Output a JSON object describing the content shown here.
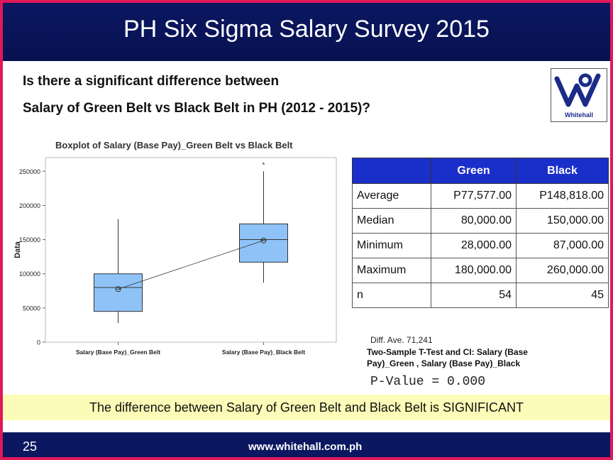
{
  "header": {
    "title": "PH Six Sigma Salary Survey 2015"
  },
  "question": {
    "line1": "Is there a significant difference between",
    "line2": "Salary of Green Belt vs Black Belt in PH (2012 - 2015)?"
  },
  "logo": {
    "text": "Whitehall",
    "color": "#1a2b8a"
  },
  "chart_data": {
    "type": "boxplot",
    "title": "Boxplot of Salary (Base Pay)_Green Belt vs Black Belt",
    "xlabel": "",
    "ylabel": "Data",
    "ylim": [
      0,
      270000
    ],
    "yticks": [
      "0",
      "50000",
      "100000",
      "150000",
      "200000",
      "250000"
    ],
    "ytick_values": [
      0,
      50000,
      100000,
      150000,
      200000,
      250000
    ],
    "grid": false,
    "box_color": "#8fc3f7",
    "categories": [
      "Salary (Base Pay)_Green Belt",
      "Salary (Base Pay)_Black Belt"
    ],
    "boxes": [
      {
        "whisker_low": 28000,
        "q1": 45000,
        "median": 80000,
        "q3": 100000,
        "whisker_high": 180000,
        "mean": 77577,
        "outliers": []
      },
      {
        "whisker_low": 87000,
        "q1": 117000,
        "median": 150000,
        "q3": 173000,
        "whisker_high": 250000,
        "mean": 148818,
        "outliers": [
          260000
        ]
      }
    ],
    "mean_connect_line": true
  },
  "stats_table": {
    "header": [
      "",
      "Green",
      "Black"
    ],
    "header_color": "#1a2fc9",
    "rows": [
      [
        "Average",
        "P77,577.00",
        "P148,818.00"
      ],
      [
        "Median",
        "80,000.00",
        "150,000.00"
      ],
      [
        "Minimum",
        "28,000.00",
        "87,000.00"
      ],
      [
        "Maximum",
        "180,000.00",
        "260,000.00"
      ],
      [
        "n",
        "54",
        "45"
      ]
    ]
  },
  "diff_ave": "Diff. Ave. 71,241",
  "ttest_title": "Two-Sample T-Test and CI: Salary (Base Pay)_Green , Salary (Base Pay)_Black",
  "p_value": "P-Value = 0.000",
  "conclusion": "The difference between Salary of Green Belt and Black Belt is SIGNIFICANT",
  "footer": {
    "page": "25",
    "url": "www.whitehall.com.ph"
  }
}
